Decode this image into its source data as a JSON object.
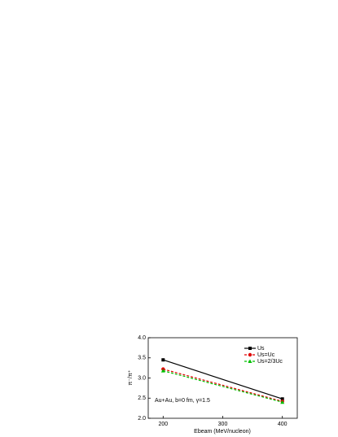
{
  "chart_data": {
    "type": "line",
    "x_label": "Ebeam (MeV/nucleon)",
    "y_label": "π⁻/π⁺",
    "annotation": "Au+Au, b=0 fm, γ=1.5",
    "x": [
      200,
      400
    ],
    "series": [
      {
        "name": "Us",
        "color": "#000000",
        "marker": "square",
        "dash": false,
        "values": [
          3.45,
          2.48
        ]
      },
      {
        "name": "Us=Uc",
        "color": "#e00000",
        "marker": "circle",
        "dash": true,
        "values": [
          3.22,
          2.42
        ]
      },
      {
        "name": "Us=2/3Uc",
        "color": "#00c000",
        "marker": "triangle",
        "dash": true,
        "values": [
          3.18,
          2.4
        ]
      }
    ],
    "xlim": [
      175,
      425
    ],
    "xticks": [
      200,
      300,
      400
    ],
    "ylim": [
      2.0,
      4.0
    ],
    "yticks": [
      {
        "value": 2.0,
        "label": "2.0"
      },
      {
        "value": 2.5,
        "label": "2.5"
      },
      {
        "value": 3.0,
        "label": "3.0"
      },
      {
        "value": 3.5,
        "label": "3.5"
      },
      {
        "value": 4.0,
        "label": "4.0"
      }
    ]
  }
}
